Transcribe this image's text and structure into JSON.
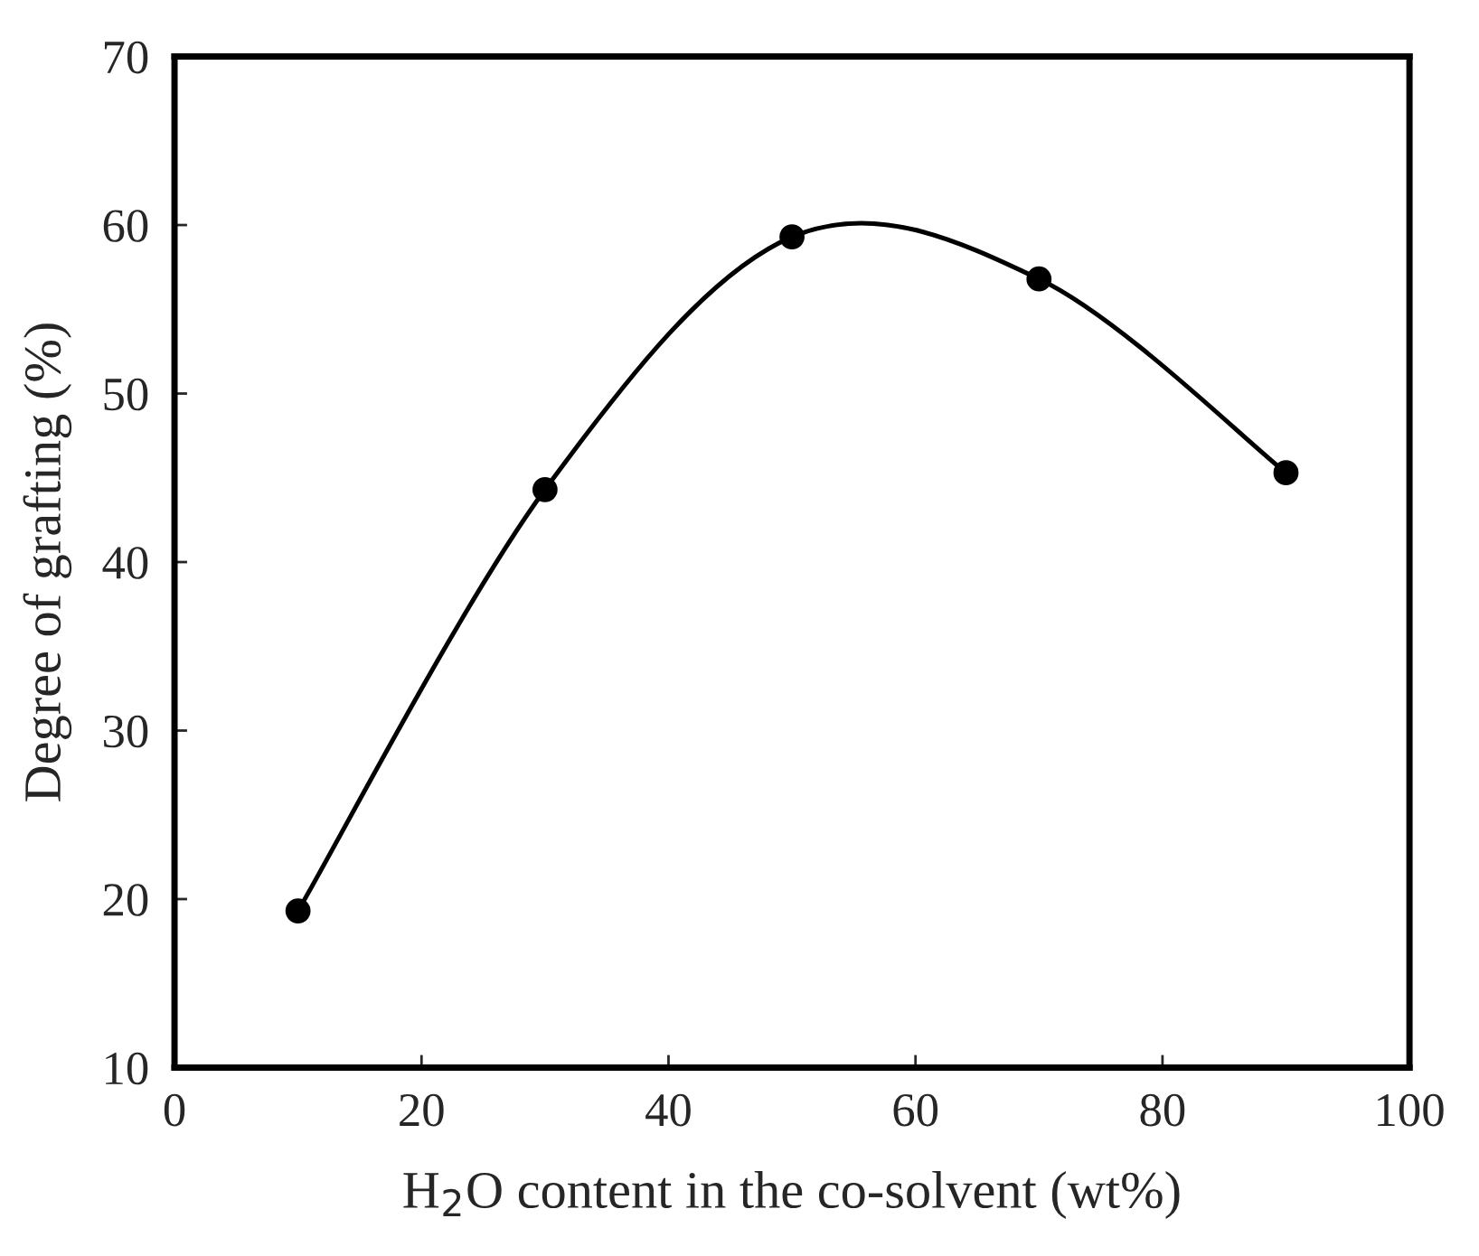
{
  "chart_data": {
    "type": "line",
    "xlabel": "H$_{2}$O content in the co-solvent (wt%)",
    "ylabel": "Degree of grafting (%)",
    "x": [
      10,
      30,
      50,
      70,
      90
    ],
    "series": [
      {
        "color": "#000000",
        "values": [
          19.3,
          44.3,
          59.3,
          56.8,
          45.3
        ]
      }
    ],
    "xlim": [
      0,
      100
    ],
    "xticks": [
      0,
      20,
      40,
      60,
      80,
      100
    ],
    "ylim": [
      10,
      70
    ],
    "yticks": [
      10,
      20,
      30,
      40,
      50,
      60,
      70
    ],
    "marker": "circle",
    "line_style": "solid",
    "grid": false,
    "legend": false
  }
}
